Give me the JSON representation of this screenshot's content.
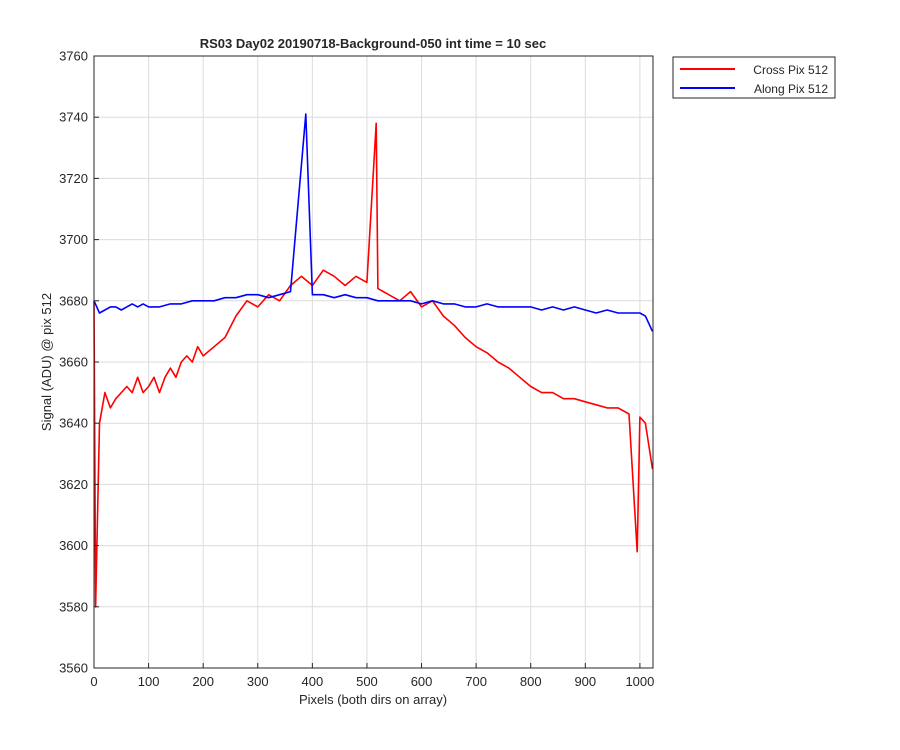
{
  "chart_data": {
    "type": "line",
    "title": "RS03 Day02 20190718-Background-050 int time = 10 sec",
    "xlabel": "Pixels (both dirs on array)",
    "ylabel": "Signal (ADU) @ pix 512",
    "xlim": [
      0,
      1024
    ],
    "ylim": [
      3560,
      3760
    ],
    "xticks": [
      0,
      100,
      200,
      300,
      400,
      500,
      600,
      700,
      800,
      900,
      1000
    ],
    "yticks": [
      3560,
      3580,
      3600,
      3620,
      3640,
      3660,
      3680,
      3700,
      3720,
      3740,
      3760
    ],
    "grid": true,
    "legend_position": "outside top-right",
    "series": [
      {
        "name": "Cross Pix 512",
        "color": "#ff0000",
        "x": [
          0,
          3,
          10,
          20,
          30,
          40,
          50,
          60,
          70,
          80,
          90,
          100,
          110,
          120,
          130,
          140,
          150,
          160,
          170,
          180,
          190,
          200,
          220,
          240,
          260,
          280,
          300,
          320,
          340,
          360,
          380,
          400,
          420,
          440,
          460,
          480,
          500,
          517,
          520,
          540,
          560,
          580,
          600,
          620,
          640,
          660,
          680,
          700,
          720,
          740,
          760,
          780,
          800,
          820,
          840,
          860,
          880,
          900,
          920,
          940,
          960,
          980,
          995,
          1000,
          1010,
          1023
        ],
        "y": [
          3680,
          3580,
          3640,
          3650,
          3645,
          3648,
          3650,
          3652,
          3650,
          3655,
          3650,
          3652,
          3655,
          3650,
          3655,
          3658,
          3655,
          3660,
          3662,
          3660,
          3665,
          3662,
          3665,
          3668,
          3675,
          3680,
          3678,
          3682,
          3680,
          3685,
          3688,
          3685,
          3690,
          3688,
          3685,
          3688,
          3686,
          3738,
          3684,
          3682,
          3680,
          3683,
          3678,
          3680,
          3675,
          3672,
          3668,
          3665,
          3663,
          3660,
          3658,
          3655,
          3652,
          3650,
          3650,
          3648,
          3648,
          3647,
          3646,
          3645,
          3645,
          3643,
          3598,
          3642,
          3640,
          3625
        ]
      },
      {
        "name": "Along Pix 512",
        "color": "#0000ff",
        "x": [
          0,
          10,
          20,
          30,
          40,
          50,
          60,
          70,
          80,
          90,
          100,
          120,
          140,
          160,
          180,
          200,
          220,
          240,
          260,
          280,
          300,
          320,
          340,
          360,
          388,
          400,
          420,
          440,
          460,
          480,
          500,
          520,
          540,
          560,
          580,
          600,
          620,
          640,
          660,
          680,
          700,
          720,
          740,
          760,
          780,
          800,
          820,
          840,
          860,
          880,
          900,
          920,
          940,
          960,
          980,
          1000,
          1010,
          1023
        ],
        "y": [
          3680,
          3676,
          3677,
          3678,
          3678,
          3677,
          3678,
          3679,
          3678,
          3679,
          3678,
          3678,
          3679,
          3679,
          3680,
          3680,
          3680,
          3681,
          3681,
          3682,
          3682,
          3681,
          3682,
          3683,
          3741,
          3682,
          3682,
          3681,
          3682,
          3681,
          3681,
          3680,
          3680,
          3680,
          3680,
          3679,
          3680,
          3679,
          3679,
          3678,
          3678,
          3679,
          3678,
          3678,
          3678,
          3678,
          3677,
          3678,
          3677,
          3678,
          3677,
          3676,
          3677,
          3676,
          3676,
          3676,
          3675,
          3670
        ]
      }
    ]
  }
}
